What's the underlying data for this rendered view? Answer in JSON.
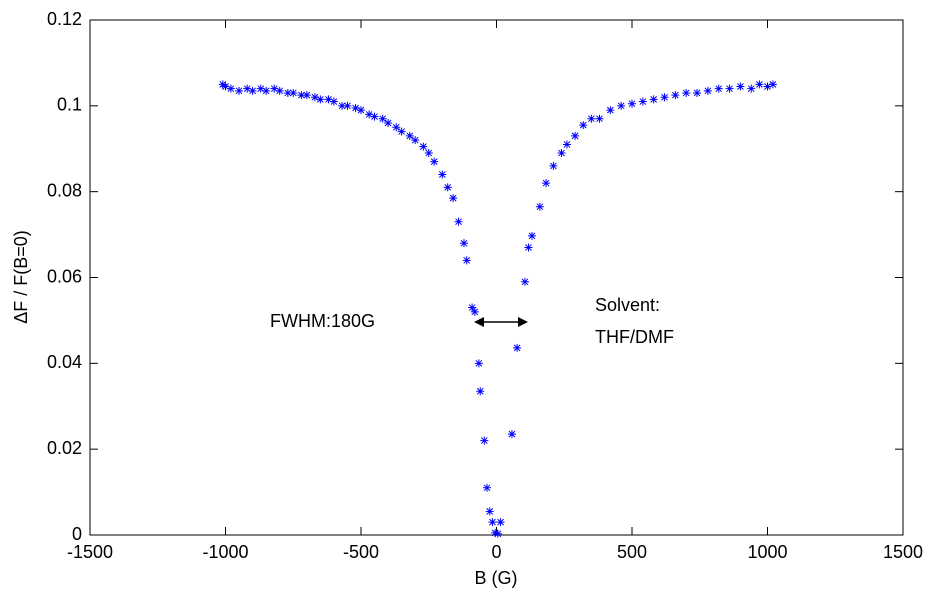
{
  "chart_data": {
    "type": "scatter",
    "x_label": "B (G)",
    "y_label": "ΔF / F(B=0)",
    "annotations": [
      "FWHM:180G",
      "Solvent:",
      "THF/DMF"
    ],
    "color": "#0000ff",
    "x": [
      -1010,
      -1000,
      -980,
      -950,
      -920,
      -900,
      -870,
      -850,
      -820,
      -800,
      -770,
      -750,
      -720,
      -700,
      -670,
      -650,
      -620,
      -600,
      -570,
      -550,
      -520,
      -500,
      -470,
      -450,
      -420,
      -400,
      -370,
      -350,
      -320,
      -300,
      -270,
      -250,
      -230,
      -200,
      -180,
      -160,
      -140,
      -120,
      -110,
      -90,
      -80,
      -65,
      -60,
      -45,
      -35,
      -25,
      -15,
      -5,
      5,
      15,
      57,
      76,
      105,
      118,
      131,
      160,
      183,
      210,
      240,
      260,
      290,
      320,
      350,
      380,
      420,
      460,
      500,
      540,
      580,
      620,
      660,
      700,
      740,
      780,
      820,
      860,
      900,
      940,
      970,
      1000,
      1020
    ],
    "values": [
      0.105,
      0.1045,
      0.104,
      0.1035,
      0.104,
      0.1035,
      0.104,
      0.1035,
      0.104,
      0.1035,
      0.103,
      0.103,
      0.1025,
      0.1025,
      0.102,
      0.1015,
      0.1015,
      0.101,
      0.1,
      0.1,
      0.0995,
      0.099,
      0.098,
      0.0975,
      0.097,
      0.096,
      0.095,
      0.094,
      0.093,
      0.092,
      0.0905,
      0.089,
      0.087,
      0.084,
      0.081,
      0.0785,
      0.073,
      0.068,
      0.064,
      0.053,
      0.052,
      0.04,
      0.0335,
      0.022,
      0.011,
      0.0055,
      0.003,
      0.0005,
      0.0003,
      0.003,
      0.0235,
      0.0436,
      0.059,
      0.067,
      0.0697,
      0.0765,
      0.082,
      0.086,
      0.089,
      0.091,
      0.093,
      0.0955,
      0.097,
      0.097,
      0.099,
      0.1,
      0.1005,
      0.101,
      0.1015,
      0.102,
      0.1025,
      0.103,
      0.103,
      0.1035,
      0.104,
      0.104,
      0.1045,
      0.104,
      0.105,
      0.1045,
      0.105
    ],
    "xlim": [
      -1500,
      1500
    ],
    "ylim": [
      0,
      0.12
    ],
    "xticks": [
      -1500,
      -1000,
      -500,
      0,
      500,
      1000,
      1500
    ],
    "yticks": [
      0,
      0.02,
      0.04,
      0.06,
      0.08,
      0.1,
      0.12
    ]
  }
}
